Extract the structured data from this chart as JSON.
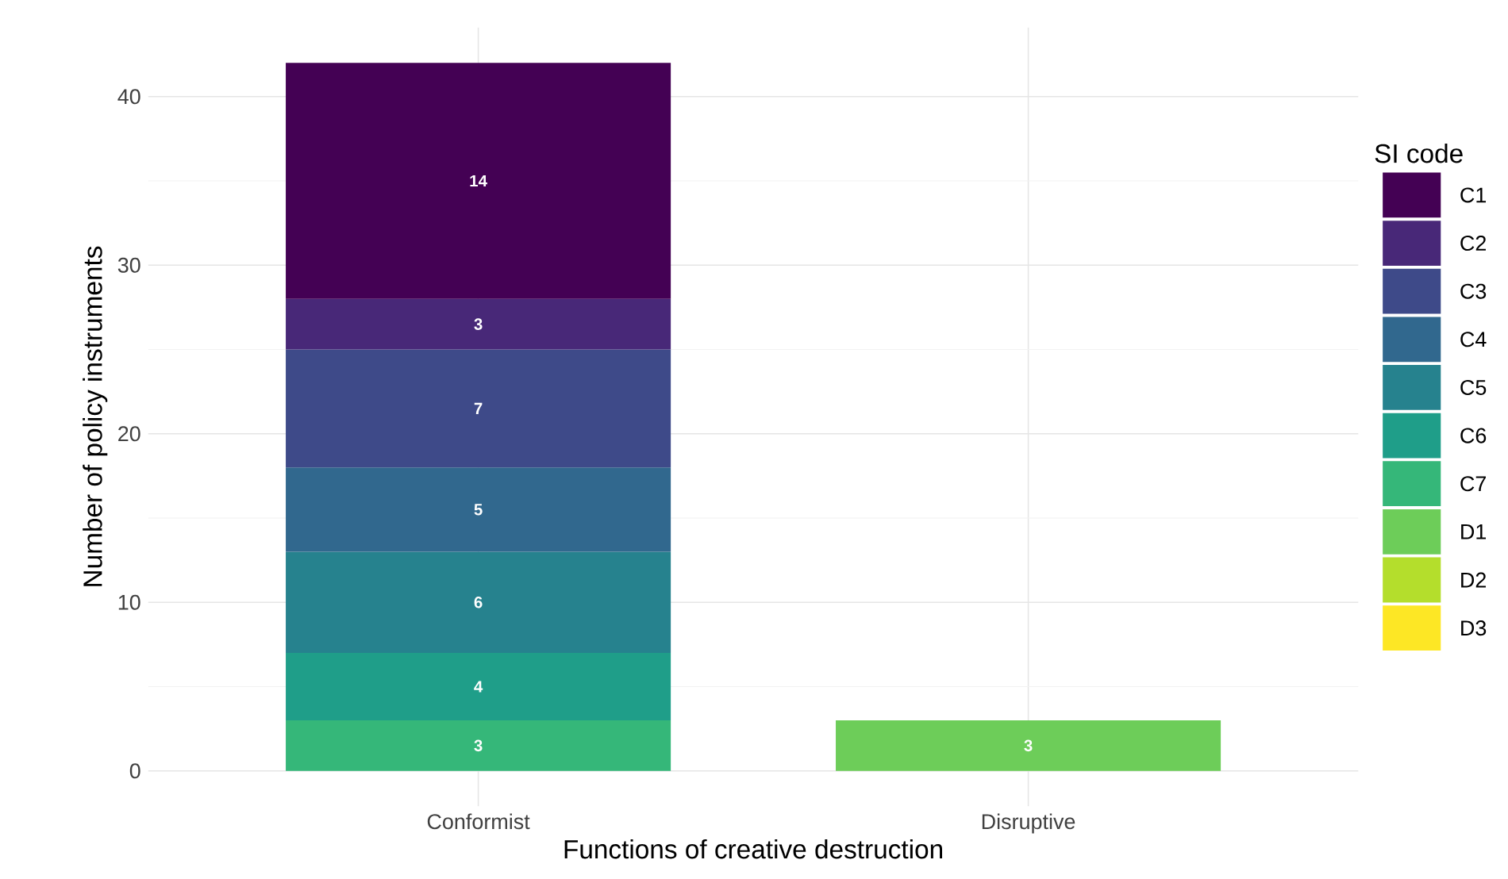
{
  "chart_data": {
    "type": "bar",
    "stacked": true,
    "xlabel": "Functions of creative destruction",
    "ylabel": "Number of policy instruments",
    "legend_title": "SI code",
    "categories": [
      "Conformist",
      "Disruptive"
    ],
    "series": [
      {
        "name": "D3",
        "color": "#fde725",
        "values": [
          null,
          null
        ]
      },
      {
        "name": "D2",
        "color": "#b4de2c",
        "values": [
          null,
          null
        ]
      },
      {
        "name": "D1",
        "color": "#6dcd59",
        "values": [
          null,
          3
        ]
      },
      {
        "name": "C7",
        "color": "#35b779",
        "values": [
          3,
          null
        ]
      },
      {
        "name": "C6",
        "color": "#1f9e89",
        "values": [
          4,
          null
        ]
      },
      {
        "name": "C5",
        "color": "#26828e",
        "values": [
          6,
          null
        ]
      },
      {
        "name": "C4",
        "color": "#31688e",
        "values": [
          5,
          null
        ]
      },
      {
        "name": "C3",
        "color": "#3e4a89",
        "values": [
          7,
          null
        ]
      },
      {
        "name": "C2",
        "color": "#482878",
        "values": [
          3,
          null
        ]
      },
      {
        "name": "C1",
        "color": "#440154",
        "values": [
          14,
          null
        ]
      }
    ],
    "ylim": [
      -2.1,
      44.1
    ],
    "yticks": [
      0,
      10,
      20,
      30,
      40
    ],
    "grid": true,
    "legend": "right",
    "data_labels": true
  }
}
